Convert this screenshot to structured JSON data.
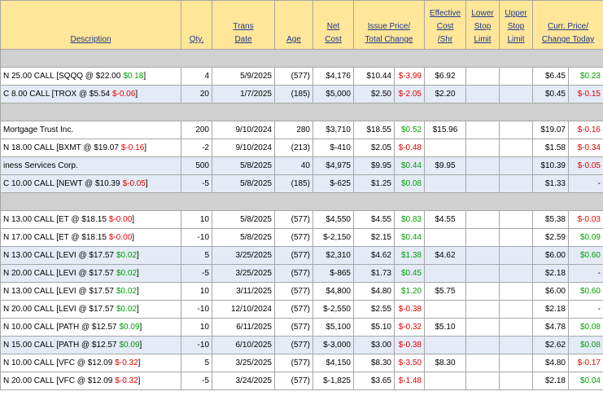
{
  "header": [
    [
      "Description"
    ],
    [
      "Qty."
    ],
    [
      "Trans",
      "Date"
    ],
    [
      "Age"
    ],
    [
      "Net",
      "Cost"
    ],
    [
      "Issue Price/",
      "Total Change"
    ],
    [
      "Effective",
      "Cost",
      "/Shr"
    ],
    [
      "Lower",
      "Stop",
      "Limit"
    ],
    [
      "Upper",
      "Stop",
      "Limit"
    ],
    [
      "Curr. Price/",
      "Change Today"
    ]
  ],
  "rows": [
    {
      "section": true
    },
    {
      "desc": "N 25.00 CALL [SQQQ @ $22.00",
      "change": "$0.18",
      "close": "]",
      "qty": "4",
      "date": "5/9/2025",
      "age": "(577)",
      "net": "$4,176",
      "issue": "$10.44",
      "total": "$-3.99",
      "eff": "$6.92",
      "curr": "$6.45",
      "today": "$0.23"
    },
    {
      "highlight": true,
      "desc": "C 8.00 CALL [TROX @ $5.54",
      "change": "$-0.06",
      "close": "]",
      "qty": "20",
      "date": "1/7/2025",
      "age": "(185)",
      "net": "$5,000",
      "issue": "$2.50",
      "total": "$-2.05",
      "eff": "$2.20",
      "curr": "$0.45",
      "today": "$-0.15"
    },
    {
      "section": true
    },
    {
      "desc": "Mortgage Trust Inc.",
      "qty": "200",
      "date": "9/10/2024",
      "age": "280",
      "net": "$3,710",
      "issue": "$18.55",
      "total": "$0.52",
      "eff": "$15.96",
      "curr": "$19.07",
      "today": "$-0.16"
    },
    {
      "desc": "N 18.00 CALL [BXMT @ $19.07",
      "change": "$-0.16",
      "close": "]",
      "qty": "-2",
      "date": "9/10/2024",
      "age": "(213)",
      "net": "$-410",
      "issue": "$2.05",
      "total": "$-0.48",
      "curr": "$1.58",
      "today": "$-0.34"
    },
    {
      "highlight": true,
      "desc": "iness Services Corp.",
      "qty": "500",
      "date": "5/8/2025",
      "age": "40",
      "net": "$4,975",
      "issue": "$9.95",
      "total": "$0.44",
      "eff": "$9.95",
      "curr": "$10.39",
      "today": "$-0.05"
    },
    {
      "highlight": true,
      "desc": "C 10.00 CALL [NEWT @ $10.39",
      "change": "$-0.05",
      "close": "]",
      "qty": "-5",
      "date": "5/8/2025",
      "age": "(185)",
      "net": "$-625",
      "issue": "$1.25",
      "total": "$0.08",
      "curr": "$1.33",
      "today": "-"
    },
    {
      "section": true
    },
    {
      "desc": "N 13.00 CALL [ET @ $18.15",
      "change": "$-0.00",
      "close": "]",
      "qty": "10",
      "date": "5/8/2025",
      "age": "(577)",
      "net": "$4,550",
      "issue": "$4.55",
      "total": "$0.83",
      "eff": "$4.55",
      "curr": "$5.38",
      "today": "$-0.03"
    },
    {
      "desc": "N 17.00 CALL [ET @ $18.15",
      "change": "$-0.00",
      "close": "]",
      "qty": "-10",
      "date": "5/8/2025",
      "age": "(577)",
      "net": "$-2,150",
      "issue": "$2.15",
      "total": "$0.44",
      "curr": "$2.59",
      "today": "$0.09"
    },
    {
      "highlight": true,
      "desc": "N 13.00 CALL [LEVI @ $17.57",
      "change": "$0.02",
      "close": "]",
      "qty": "5",
      "date": "3/25/2025",
      "age": "(577)",
      "net": "$2,310",
      "issue": "$4.62",
      "total": "$1.38",
      "eff": "$4.62",
      "curr": "$6.00",
      "today": "$0.60"
    },
    {
      "highlight": true,
      "desc": "N 20.00 CALL [LEVI @ $17.57",
      "change": "$0.02",
      "close": "]",
      "qty": "-5",
      "date": "3/25/2025",
      "age": "(577)",
      "net": "$-865",
      "issue": "$1.73",
      "total": "$0.45",
      "curr": "$2.18",
      "today": "-"
    },
    {
      "desc": "N 13.00 CALL [LEVI @ $17.57",
      "change": "$0.02",
      "close": "]",
      "qty": "10",
      "date": "3/11/2025",
      "age": "(577)",
      "net": "$4,800",
      "issue": "$4.80",
      "total": "$1.20",
      "eff": "$5.75",
      "curr": "$6.00",
      "today": "$0.60"
    },
    {
      "desc": "N 20.00 CALL [LEVI @ $17.57",
      "change": "$0.02",
      "close": "]",
      "qty": "-10",
      "date": "12/10/2024",
      "age": "(577)",
      "net": "$-2,550",
      "issue": "$2.55",
      "total": "$-0.38",
      "curr": "$2.18",
      "today": "-"
    },
    {
      "desc": "N 10.00 CALL [PATH @ $12.57",
      "change": "$0.09",
      "close": "]",
      "qty": "10",
      "date": "6/11/2025",
      "age": "(577)",
      "net": "$5,100",
      "issue": "$5.10",
      "total": "$-0.32",
      "eff": "$5.10",
      "curr": "$4.78",
      "today": "$0.08"
    },
    {
      "highlight": true,
      "desc": "N 15.00 CALL [PATH @ $12.57",
      "change": "$0.09",
      "close": "]",
      "qty": "-10",
      "date": "6/10/2025",
      "age": "(577)",
      "net": "$-3,000",
      "issue": "$3.00",
      "total": "$-0.38",
      "curr": "$2.62",
      "today": "$0.08"
    },
    {
      "desc": "N 10.00 CALL [VFC @ $12.09",
      "change": "$-0.32",
      "close": "]",
      "qty": "5",
      "date": "3/25/2025",
      "age": "(577)",
      "net": "$4,150",
      "issue": "$8.30",
      "total": "$-3.50",
      "eff": "$8.30",
      "curr": "$4.80",
      "today": "$-0.17"
    },
    {
      "desc": "N 20.00 CALL [VFC @ $12.09",
      "change": "$-0.32",
      "close": "]",
      "qty": "-5",
      "date": "3/24/2025",
      "age": "(577)",
      "net": "$-1,825",
      "issue": "$3.65",
      "total": "$-1.48",
      "curr": "$2.18",
      "today": "$0.04"
    }
  ]
}
